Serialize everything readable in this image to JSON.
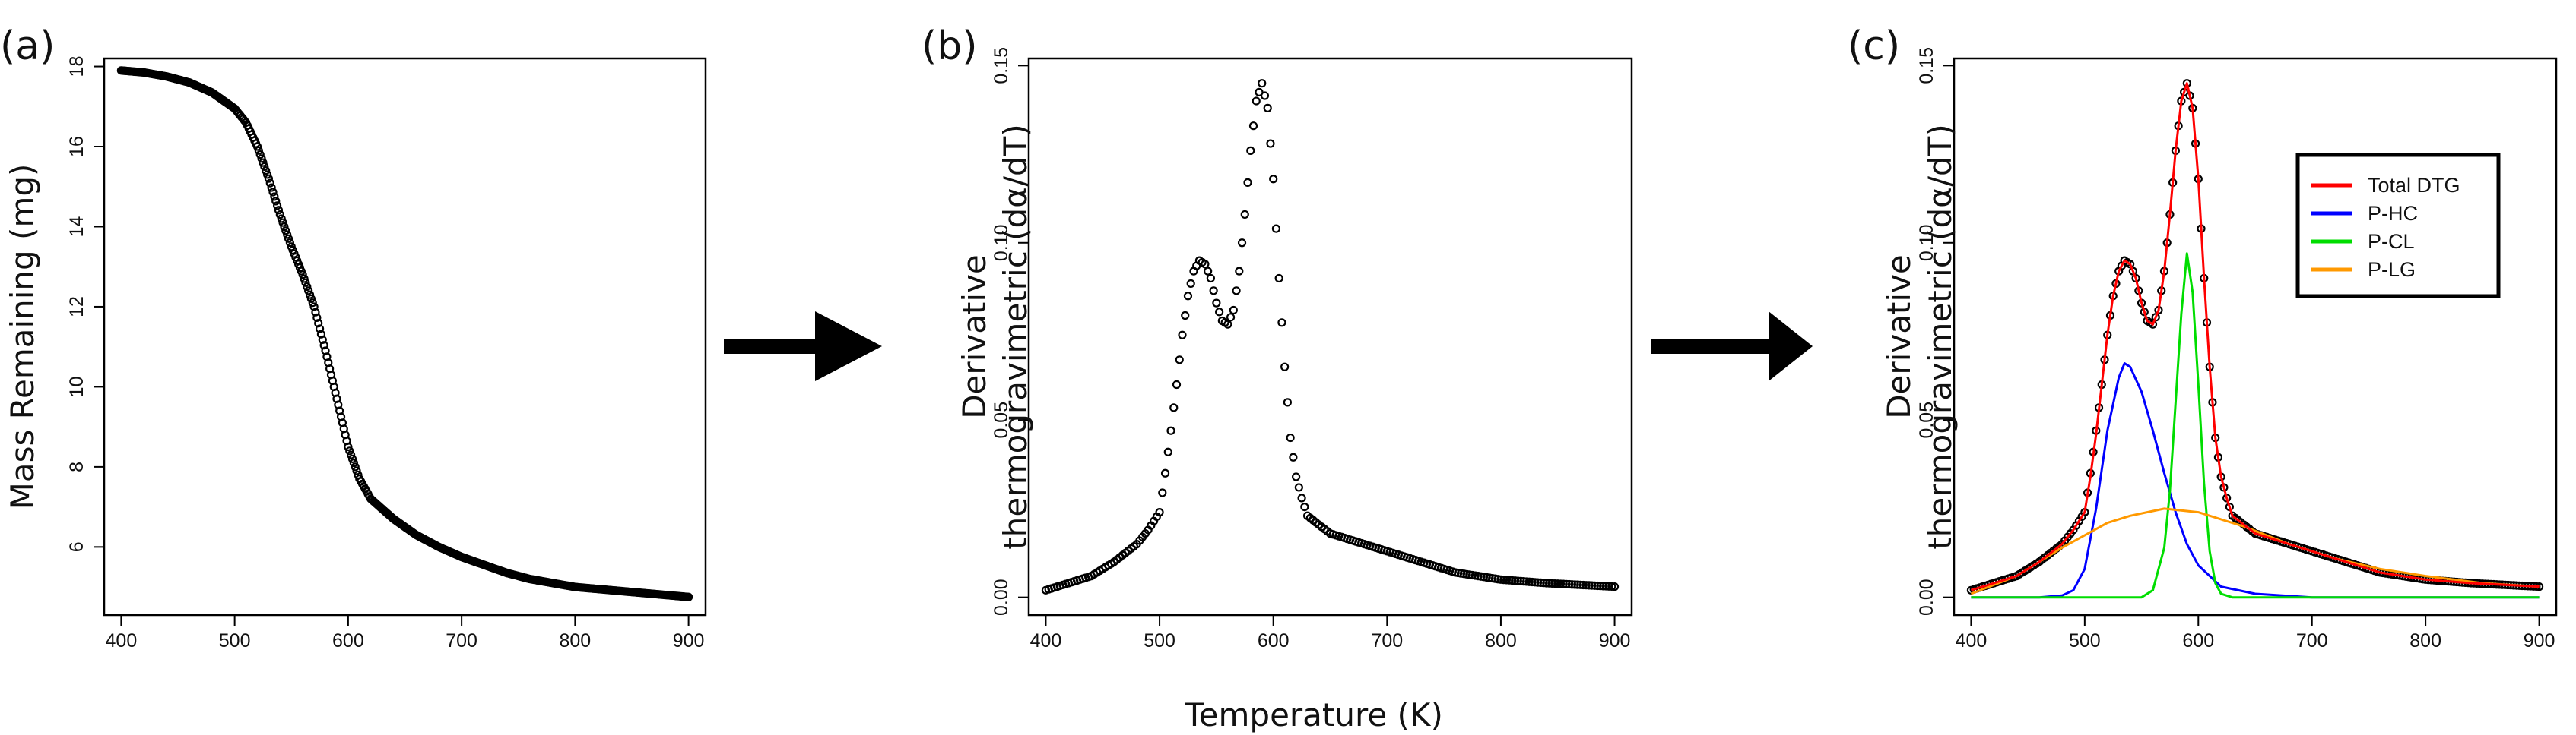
{
  "figure": {
    "shared_xlabel": "Temperature (K)",
    "arrow_color": "#000000"
  },
  "chart_data": [
    {
      "panel_tag": "(a)",
      "type": "scatter",
      "title": "",
      "xlabel": "",
      "ylabel": "Mass Remaining (mg)",
      "xlim": [
        385,
        915
      ],
      "ylim": [
        4.3,
        18.2
      ],
      "xticks": [
        400,
        500,
        600,
        700,
        800,
        900
      ],
      "yticks": [
        6,
        8,
        10,
        12,
        14,
        16,
        18
      ],
      "grid": false,
      "marker": "open-circle",
      "series": [
        {
          "color": "#000000",
          "points": [
            [
              400,
              17.9
            ],
            [
              420,
              17.85
            ],
            [
              440,
              17.75
            ],
            [
              460,
              17.6
            ],
            [
              480,
              17.35
            ],
            [
              500,
              16.95
            ],
            [
              510,
              16.6
            ],
            [
              520,
              16.0
            ],
            [
              530,
              15.2
            ],
            [
              540,
              14.3
            ],
            [
              550,
              13.5
            ],
            [
              560,
              12.8
            ],
            [
              570,
              12.0
            ],
            [
              580,
              10.9
            ],
            [
              590,
              9.7
            ],
            [
              600,
              8.5
            ],
            [
              610,
              7.7
            ],
            [
              620,
              7.2
            ],
            [
              640,
              6.7
            ],
            [
              660,
              6.3
            ],
            [
              680,
              6.0
            ],
            [
              700,
              5.75
            ],
            [
              720,
              5.55
            ],
            [
              740,
              5.35
            ],
            [
              760,
              5.2
            ],
            [
              780,
              5.1
            ],
            [
              800,
              5.0
            ],
            [
              820,
              4.95
            ],
            [
              840,
              4.9
            ],
            [
              860,
              4.85
            ],
            [
              880,
              4.8
            ],
            [
              900,
              4.75
            ]
          ]
        }
      ]
    },
    {
      "panel_tag": "(b)",
      "type": "scatter",
      "title": "",
      "xlabel": "",
      "ylabel": "Derivative thermogravimetric (dα/dT)",
      "xlim": [
        385,
        915
      ],
      "ylim": [
        -0.005,
        0.152
      ],
      "xticks": [
        400,
        500,
        600,
        700,
        800,
        900
      ],
      "yticks": [
        0.0,
        0.05,
        0.1,
        0.15
      ],
      "ytick_labels": [
        "0.00",
        "0.05",
        "0.10",
        "0.15"
      ],
      "grid": false,
      "marker": "open-circle",
      "series": [
        {
          "color": "#000000",
          "points": [
            [
              400,
              0.002
            ],
            [
              420,
              0.004
            ],
            [
              440,
              0.006
            ],
            [
              460,
              0.01
            ],
            [
              480,
              0.015
            ],
            [
              490,
              0.019
            ],
            [
              500,
              0.024
            ],
            [
              505,
              0.035
            ],
            [
              510,
              0.047
            ],
            [
              515,
              0.06
            ],
            [
              520,
              0.074
            ],
            [
              525,
              0.085
            ],
            [
              530,
              0.092
            ],
            [
              535,
              0.095
            ],
            [
              540,
              0.094
            ],
            [
              545,
              0.09
            ],
            [
              550,
              0.083
            ],
            [
              555,
              0.078
            ],
            [
              560,
              0.077
            ],
            [
              565,
              0.081
            ],
            [
              570,
              0.092
            ],
            [
              575,
              0.108
            ],
            [
              580,
              0.126
            ],
            [
              585,
              0.14
            ],
            [
              590,
              0.145
            ],
            [
              595,
              0.138
            ],
            [
              600,
              0.118
            ],
            [
              605,
              0.09
            ],
            [
              610,
              0.065
            ],
            [
              615,
              0.045
            ],
            [
              620,
              0.034
            ],
            [
              625,
              0.028
            ],
            [
              630,
              0.023
            ],
            [
              650,
              0.018
            ],
            [
              670,
              0.016
            ],
            [
              700,
              0.013
            ],
            [
              730,
              0.01
            ],
            [
              760,
              0.007
            ],
            [
              800,
              0.005
            ],
            [
              840,
              0.004
            ],
            [
              870,
              0.0035
            ],
            [
              900,
              0.003
            ]
          ]
        }
      ]
    },
    {
      "panel_tag": "(c)",
      "type": "line",
      "title": "",
      "xlabel": "",
      "ylabel": "Derivative thermogravimetric (dα/dT)",
      "xlim": [
        385,
        915
      ],
      "ylim": [
        -0.005,
        0.152
      ],
      "xticks": [
        400,
        500,
        600,
        700,
        800,
        900
      ],
      "yticks": [
        0.0,
        0.05,
        0.1,
        0.15
      ],
      "ytick_labels": [
        "0.00",
        "0.05",
        "0.10",
        "0.15"
      ],
      "grid": false,
      "legend_position": "top-right",
      "measured": {
        "marker": "open-circle",
        "color": "#000000",
        "points": [
          [
            400,
            0.002
          ],
          [
            420,
            0.004
          ],
          [
            440,
            0.006
          ],
          [
            460,
            0.01
          ],
          [
            480,
            0.015
          ],
          [
            490,
            0.019
          ],
          [
            500,
            0.024
          ],
          [
            505,
            0.035
          ],
          [
            510,
            0.047
          ],
          [
            515,
            0.06
          ],
          [
            520,
            0.074
          ],
          [
            525,
            0.085
          ],
          [
            530,
            0.092
          ],
          [
            535,
            0.095
          ],
          [
            540,
            0.094
          ],
          [
            545,
            0.09
          ],
          [
            550,
            0.083
          ],
          [
            555,
            0.078
          ],
          [
            560,
            0.077
          ],
          [
            565,
            0.081
          ],
          [
            570,
            0.092
          ],
          [
            575,
            0.108
          ],
          [
            580,
            0.126
          ],
          [
            585,
            0.14
          ],
          [
            590,
            0.145
          ],
          [
            595,
            0.138
          ],
          [
            600,
            0.118
          ],
          [
            605,
            0.09
          ],
          [
            610,
            0.065
          ],
          [
            615,
            0.045
          ],
          [
            620,
            0.034
          ],
          [
            625,
            0.028
          ],
          [
            630,
            0.023
          ],
          [
            650,
            0.018
          ],
          [
            670,
            0.016
          ],
          [
            700,
            0.013
          ],
          [
            730,
            0.01
          ],
          [
            760,
            0.007
          ],
          [
            800,
            0.005
          ],
          [
            840,
            0.004
          ],
          [
            870,
            0.0035
          ],
          [
            900,
            0.003
          ]
        ]
      },
      "series": [
        {
          "name": "Total DTG",
          "color": "#ff0000",
          "points": [
            [
              400,
              0.002
            ],
            [
              420,
              0.004
            ],
            [
              440,
              0.006
            ],
            [
              460,
              0.01
            ],
            [
              480,
              0.015
            ],
            [
              490,
              0.019
            ],
            [
              500,
              0.024
            ],
            [
              505,
              0.034
            ],
            [
              510,
              0.046
            ],
            [
              515,
              0.06
            ],
            [
              520,
              0.074
            ],
            [
              525,
              0.085
            ],
            [
              530,
              0.092
            ],
            [
              535,
              0.095
            ],
            [
              540,
              0.094
            ],
            [
              545,
              0.09
            ],
            [
              550,
              0.083
            ],
            [
              555,
              0.078
            ],
            [
              560,
              0.077
            ],
            [
              565,
              0.081
            ],
            [
              570,
              0.092
            ],
            [
              575,
              0.108
            ],
            [
              580,
              0.126
            ],
            [
              585,
              0.14
            ],
            [
              590,
              0.145
            ],
            [
              595,
              0.138
            ],
            [
              600,
              0.118
            ],
            [
              605,
              0.09
            ],
            [
              610,
              0.065
            ],
            [
              615,
              0.045
            ],
            [
              620,
              0.034
            ],
            [
              625,
              0.028
            ],
            [
              630,
              0.023
            ],
            [
              650,
              0.018
            ],
            [
              670,
              0.016
            ],
            [
              700,
              0.013
            ],
            [
              730,
              0.01
            ],
            [
              760,
              0.007
            ],
            [
              800,
              0.005
            ],
            [
              840,
              0.004
            ],
            [
              870,
              0.0035
            ],
            [
              900,
              0.003
            ]
          ]
        },
        {
          "name": "P-HC",
          "color": "#0000ff",
          "points": [
            [
              400,
              0.0
            ],
            [
              460,
              0.0
            ],
            [
              480,
              0.0005
            ],
            [
              490,
              0.002
            ],
            [
              500,
              0.008
            ],
            [
              510,
              0.025
            ],
            [
              520,
              0.047
            ],
            [
              530,
              0.062
            ],
            [
              535,
              0.066
            ],
            [
              540,
              0.065
            ],
            [
              550,
              0.058
            ],
            [
              560,
              0.047
            ],
            [
              570,
              0.035
            ],
            [
              580,
              0.024
            ],
            [
              590,
              0.015
            ],
            [
              600,
              0.009
            ],
            [
              620,
              0.003
            ],
            [
              650,
              0.001
            ],
            [
              700,
              0.0
            ],
            [
              900,
              0.0
            ]
          ]
        },
        {
          "name": "P-CL",
          "color": "#00dd00",
          "points": [
            [
              400,
              0.0
            ],
            [
              550,
              0.0
            ],
            [
              560,
              0.002
            ],
            [
              570,
              0.014
            ],
            [
              575,
              0.03
            ],
            [
              580,
              0.055
            ],
            [
              585,
              0.08
            ],
            [
              590,
              0.097
            ],
            [
              595,
              0.086
            ],
            [
              600,
              0.06
            ],
            [
              605,
              0.032
            ],
            [
              610,
              0.013
            ],
            [
              615,
              0.004
            ],
            [
              620,
              0.001
            ],
            [
              630,
              0.0
            ],
            [
              900,
              0.0
            ]
          ]
        },
        {
          "name": "P-LG",
          "color": "#ff9900",
          "points": [
            [
              400,
              0.001
            ],
            [
              440,
              0.006
            ],
            [
              480,
              0.014
            ],
            [
              520,
              0.021
            ],
            [
              540,
              0.023
            ],
            [
              570,
              0.025
            ],
            [
              600,
              0.024
            ],
            [
              640,
              0.02
            ],
            [
              680,
              0.015
            ],
            [
              720,
              0.011
            ],
            [
              760,
              0.008
            ],
            [
              800,
              0.006
            ],
            [
              850,
              0.004
            ],
            [
              900,
              0.003
            ]
          ]
        }
      ]
    }
  ]
}
